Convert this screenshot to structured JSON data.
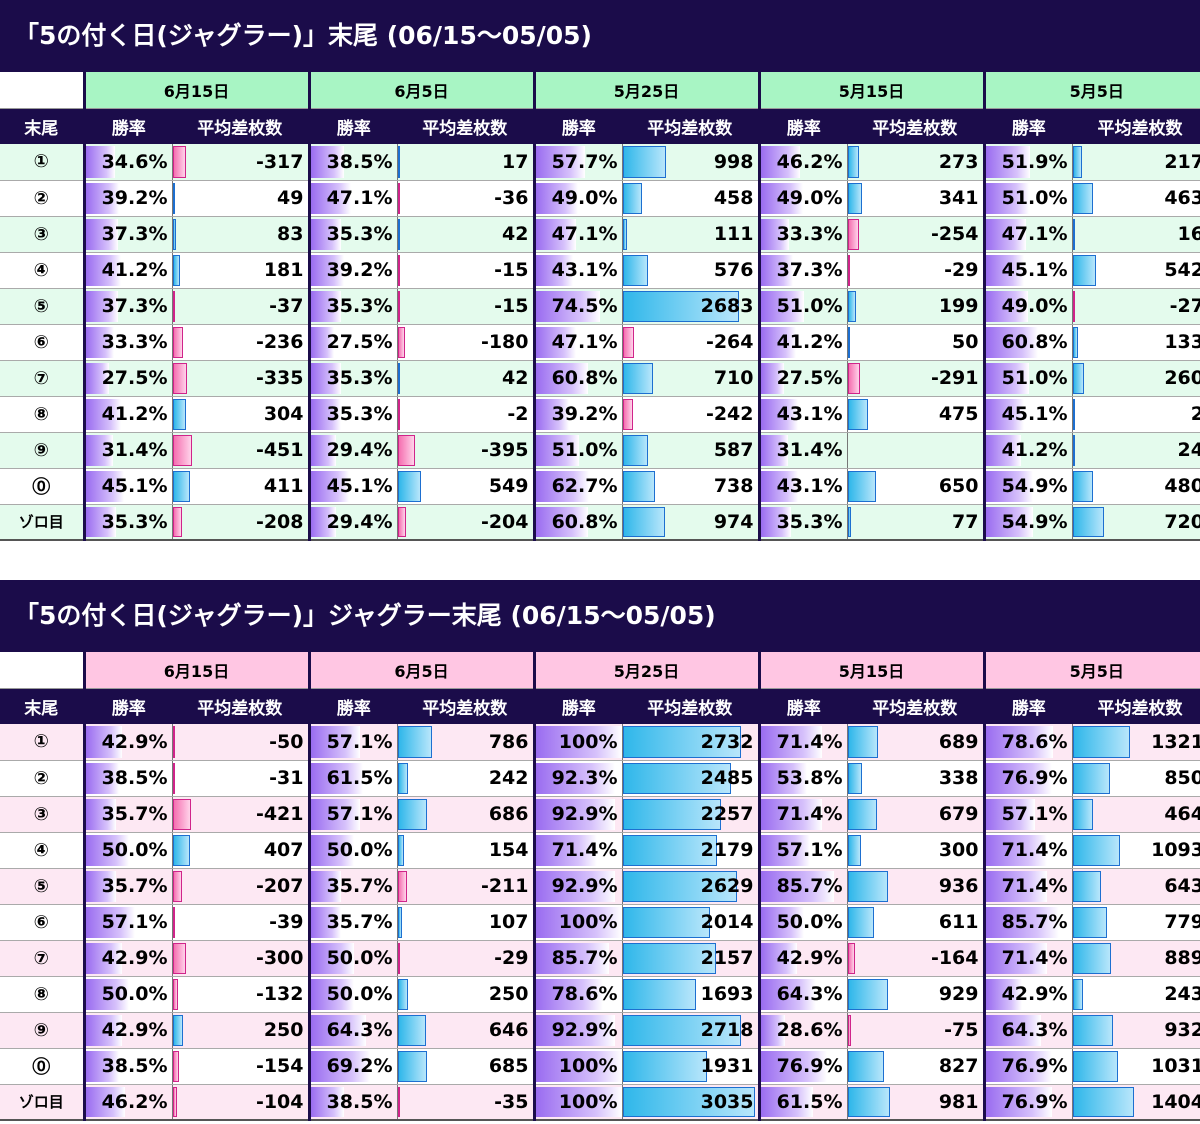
{
  "sections": [
    {
      "title": "「5の付く日(ジャグラー)」末尾 (06/15〜05/05)",
      "header_color": "#a8f5c4",
      "stripe_color": "#e4fbed",
      "dates": [
        "6月15日",
        "6月5日",
        "5月25日",
        "5月15日",
        "5月5日"
      ],
      "col_key": "末尾",
      "col_rate": "勝率",
      "col_diff": "平均差枚数",
      "rows": [
        {
          "key": "①",
          "cells": [
            [
              "34.6%",
              "-317"
            ],
            [
              "38.5%",
              "17"
            ],
            [
              "57.7%",
              "998"
            ],
            [
              "46.2%",
              "273"
            ],
            [
              "51.9%",
              "217"
            ]
          ]
        },
        {
          "key": "②",
          "cells": [
            [
              "39.2%",
              "49"
            ],
            [
              "47.1%",
              "-36"
            ],
            [
              "49.0%",
              "458"
            ],
            [
              "49.0%",
              "341"
            ],
            [
              "51.0%",
              "463"
            ]
          ]
        },
        {
          "key": "③",
          "cells": [
            [
              "37.3%",
              "83"
            ],
            [
              "35.3%",
              "42"
            ],
            [
              "47.1%",
              "111"
            ],
            [
              "33.3%",
              "-254"
            ],
            [
              "47.1%",
              "16"
            ]
          ]
        },
        {
          "key": "④",
          "cells": [
            [
              "41.2%",
              "181"
            ],
            [
              "39.2%",
              "-15"
            ],
            [
              "43.1%",
              "576"
            ],
            [
              "37.3%",
              "-29"
            ],
            [
              "45.1%",
              "542"
            ]
          ]
        },
        {
          "key": "⑤",
          "cells": [
            [
              "37.3%",
              "-37"
            ],
            [
              "35.3%",
              "-15"
            ],
            [
              "74.5%",
              "2683"
            ],
            [
              "51.0%",
              "199"
            ],
            [
              "49.0%",
              "-27"
            ]
          ]
        },
        {
          "key": "⑥",
          "cells": [
            [
              "33.3%",
              "-236"
            ],
            [
              "27.5%",
              "-180"
            ],
            [
              "47.1%",
              "-264"
            ],
            [
              "41.2%",
              "50"
            ],
            [
              "60.8%",
              "133"
            ]
          ]
        },
        {
          "key": "⑦",
          "cells": [
            [
              "27.5%",
              "-335"
            ],
            [
              "35.3%",
              "42"
            ],
            [
              "60.8%",
              "710"
            ],
            [
              "27.5%",
              "-291"
            ],
            [
              "51.0%",
              "260"
            ]
          ]
        },
        {
          "key": "⑧",
          "cells": [
            [
              "41.2%",
              "304"
            ],
            [
              "35.3%",
              "-2"
            ],
            [
              "39.2%",
              "-242"
            ],
            [
              "43.1%",
              "475"
            ],
            [
              "45.1%",
              "2"
            ]
          ]
        },
        {
          "key": "⑨",
          "cells": [
            [
              "31.4%",
              "-451"
            ],
            [
              "29.4%",
              "-395"
            ],
            [
              "51.0%",
              "587"
            ],
            [
              "31.4%",
              ""
            ],
            [
              "41.2%",
              "24"
            ]
          ]
        },
        {
          "key": "⓪",
          "cells": [
            [
              "45.1%",
              "411"
            ],
            [
              "45.1%",
              "549"
            ],
            [
              "62.7%",
              "738"
            ],
            [
              "43.1%",
              "650"
            ],
            [
              "54.9%",
              "480"
            ]
          ]
        },
        {
          "key": "ゾロ目",
          "cells": [
            [
              "35.3%",
              "-208"
            ],
            [
              "29.4%",
              "-204"
            ],
            [
              "60.8%",
              "974"
            ],
            [
              "35.3%",
              "77"
            ],
            [
              "54.9%",
              "720"
            ]
          ]
        }
      ]
    },
    {
      "title": "「5の付く日(ジャグラー)」ジャグラー末尾 (06/15〜05/05)",
      "header_color": "#ffc6e3",
      "stripe_color": "#fde8f3",
      "dates": [
        "6月15日",
        "6月5日",
        "5月25日",
        "5月15日",
        "5月5日"
      ],
      "col_key": "末尾",
      "col_rate": "勝率",
      "col_diff": "平均差枚数",
      "rows": [
        {
          "key": "①",
          "cells": [
            [
              "42.9%",
              "-50"
            ],
            [
              "57.1%",
              "786"
            ],
            [
              "100%",
              "2732"
            ],
            [
              "71.4%",
              "689"
            ],
            [
              "78.6%",
              "1321"
            ]
          ]
        },
        {
          "key": "②",
          "cells": [
            [
              "38.5%",
              "-31"
            ],
            [
              "61.5%",
              "242"
            ],
            [
              "92.3%",
              "2485"
            ],
            [
              "53.8%",
              "338"
            ],
            [
              "76.9%",
              "850"
            ]
          ]
        },
        {
          "key": "③",
          "cells": [
            [
              "35.7%",
              "-421"
            ],
            [
              "57.1%",
              "686"
            ],
            [
              "92.9%",
              "2257"
            ],
            [
              "71.4%",
              "679"
            ],
            [
              "57.1%",
              "464"
            ]
          ]
        },
        {
          "key": "④",
          "cells": [
            [
              "50.0%",
              "407"
            ],
            [
              "50.0%",
              "154"
            ],
            [
              "71.4%",
              "2179"
            ],
            [
              "57.1%",
              "300"
            ],
            [
              "71.4%",
              "1093"
            ]
          ]
        },
        {
          "key": "⑤",
          "cells": [
            [
              "35.7%",
              "-207"
            ],
            [
              "35.7%",
              "-211"
            ],
            [
              "92.9%",
              "2629"
            ],
            [
              "85.7%",
              "936"
            ],
            [
              "71.4%",
              "643"
            ]
          ]
        },
        {
          "key": "⑥",
          "cells": [
            [
              "57.1%",
              "-39"
            ],
            [
              "35.7%",
              "107"
            ],
            [
              "100%",
              "2014"
            ],
            [
              "50.0%",
              "611"
            ],
            [
              "85.7%",
              "779"
            ]
          ]
        },
        {
          "key": "⑦",
          "cells": [
            [
              "42.9%",
              "-300"
            ],
            [
              "50.0%",
              "-29"
            ],
            [
              "85.7%",
              "2157"
            ],
            [
              "42.9%",
              "-164"
            ],
            [
              "71.4%",
              "889"
            ]
          ]
        },
        {
          "key": "⑧",
          "cells": [
            [
              "50.0%",
              "-132"
            ],
            [
              "50.0%",
              "250"
            ],
            [
              "78.6%",
              "1693"
            ],
            [
              "64.3%",
              "929"
            ],
            [
              "42.9%",
              "243"
            ]
          ]
        },
        {
          "key": "⑨",
          "cells": [
            [
              "42.9%",
              "250"
            ],
            [
              "64.3%",
              "646"
            ],
            [
              "92.9%",
              "2718"
            ],
            [
              "28.6%",
              "-75"
            ],
            [
              "64.3%",
              "932"
            ]
          ]
        },
        {
          "key": "⓪",
          "cells": [
            [
              "38.5%",
              "-154"
            ],
            [
              "69.2%",
              "685"
            ],
            [
              "100%",
              "1931"
            ],
            [
              "76.9%",
              "827"
            ],
            [
              "76.9%",
              "1031"
            ]
          ]
        },
        {
          "key": "ゾロ目",
          "cells": [
            [
              "46.2%",
              "-104"
            ],
            [
              "38.5%",
              "-35"
            ],
            [
              "100%",
              "3035"
            ],
            [
              "61.5%",
              "981"
            ],
            [
              "76.9%",
              "1404"
            ]
          ]
        }
      ]
    }
  ]
}
